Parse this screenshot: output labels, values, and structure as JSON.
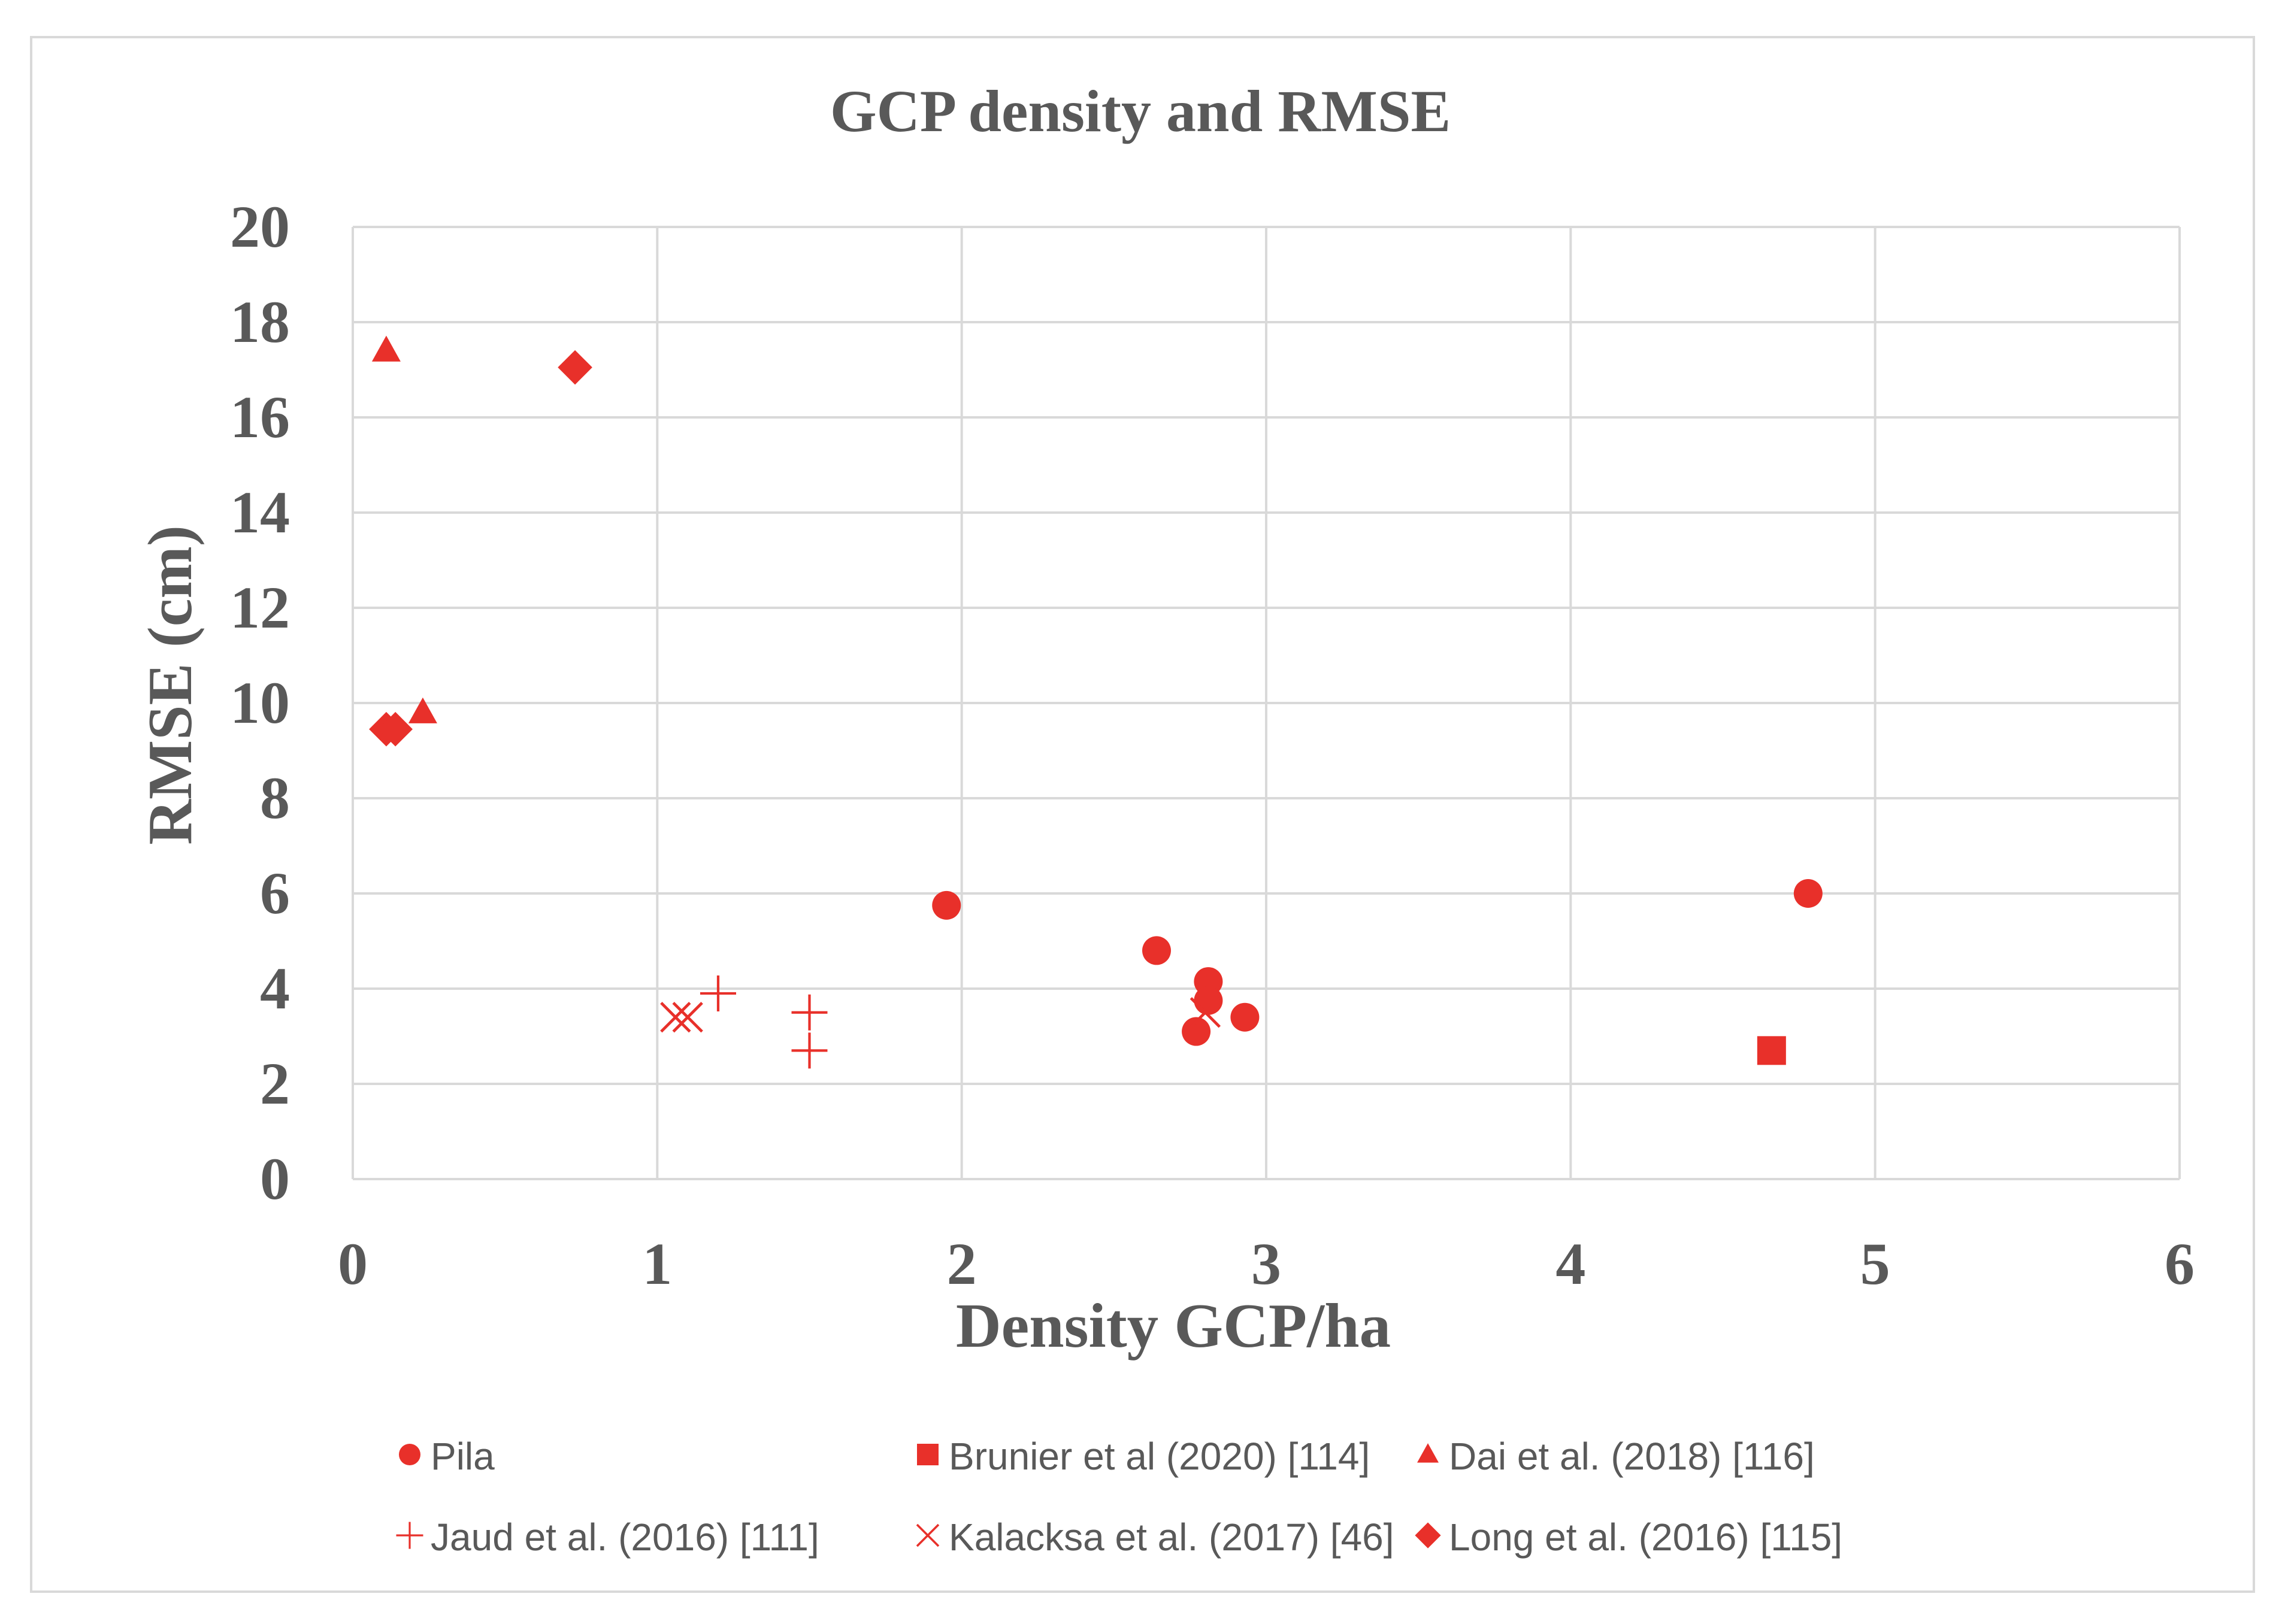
{
  "chart_data": {
    "type": "scatter",
    "title": "GCP density and RMSE",
    "xlabel": "Density GCP/ha",
    "ylabel": "RMSE (cm)",
    "xlim": [
      0,
      6
    ],
    "ylim": [
      0,
      20
    ],
    "x_ticks": [
      "0",
      "1",
      "2",
      "3",
      "4",
      "5",
      "6"
    ],
    "y_ticks": [
      "0",
      "2",
      "4",
      "6",
      "8",
      "10",
      "12",
      "14",
      "16",
      "18",
      "20"
    ],
    "grid": true,
    "legend_position": "bottom",
    "color": "#e8302a",
    "series": [
      {
        "name": "Pila",
        "marker": "circle",
        "points": [
          [
            1.95,
            5.75
          ],
          [
            2.64,
            4.8
          ],
          [
            2.81,
            4.15
          ],
          [
            2.81,
            3.75
          ],
          [
            2.77,
            3.1
          ],
          [
            2.93,
            3.4
          ],
          [
            4.78,
            6.0
          ]
        ]
      },
      {
        "name": "Brunier et al (2020) [114]",
        "marker": "square",
        "points": [
          [
            4.66,
            2.7
          ]
        ]
      },
      {
        "name": "Dai et al. (2018) [116]",
        "marker": "triangle",
        "points": [
          [
            0.11,
            17.4
          ],
          [
            0.23,
            9.8
          ]
        ]
      },
      {
        "name": "Jaud et al. (2016) [111]",
        "marker": "plus",
        "points": [
          [
            1.2,
            3.9
          ],
          [
            1.5,
            3.5
          ],
          [
            1.5,
            2.7
          ]
        ]
      },
      {
        "name": "Kalacksa et al. (2017) [46]",
        "marker": "x",
        "points": [
          [
            1.06,
            3.4
          ],
          [
            1.1,
            3.4
          ],
          [
            2.8,
            3.5
          ]
        ]
      },
      {
        "name": "Long et al. (2016) [115]",
        "marker": "diamond",
        "points": [
          [
            0.73,
            17.05
          ],
          [
            0.11,
            9.45
          ],
          [
            0.14,
            9.45
          ]
        ]
      }
    ]
  }
}
